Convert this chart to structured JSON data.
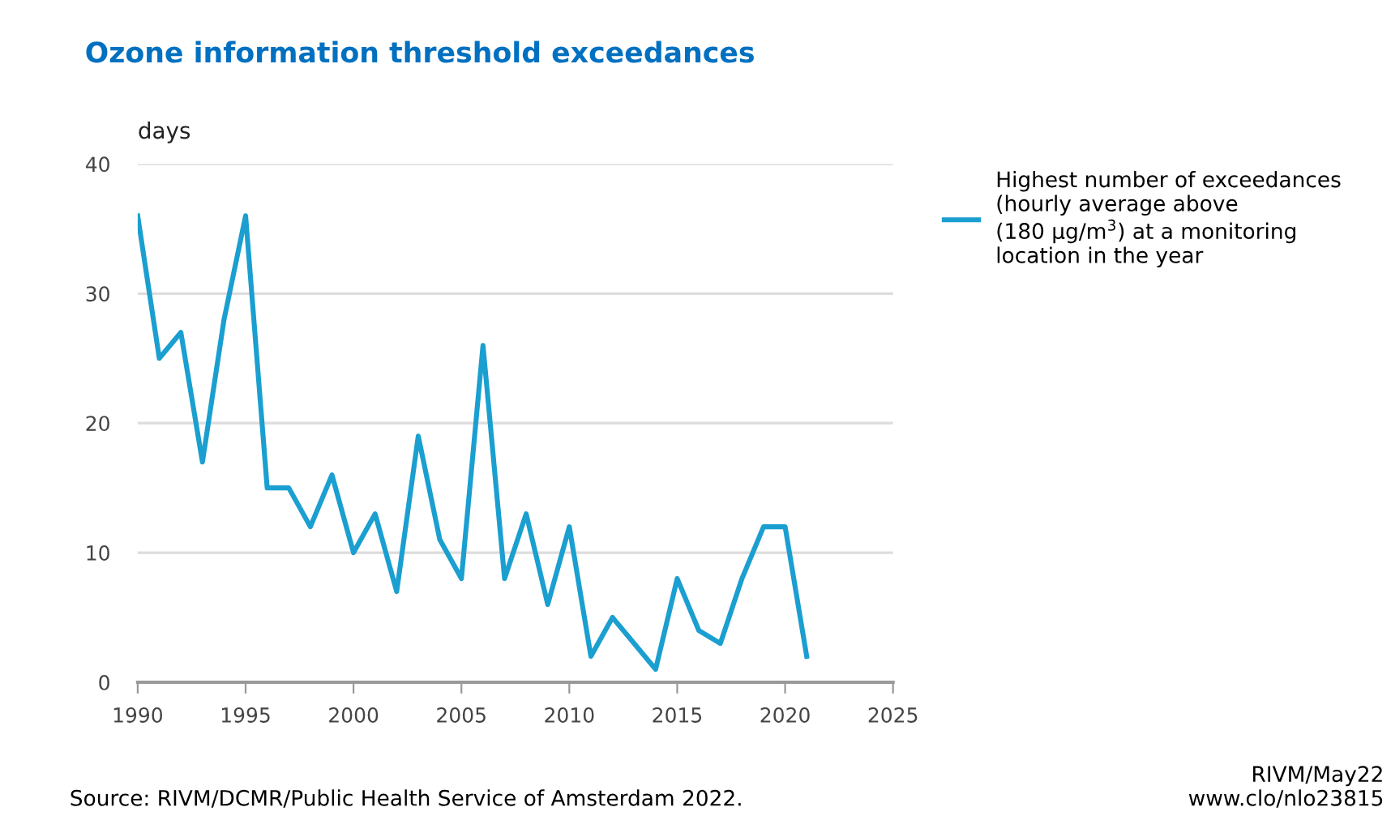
{
  "chart_data": {
    "type": "line",
    "title": "Ozone information threshold exceedances",
    "ylabel": "days",
    "x": [
      1990,
      1991,
      1992,
      1993,
      1994,
      1995,
      1996,
      1997,
      1998,
      1999,
      2000,
      2001,
      2002,
      2003,
      2004,
      2005,
      2006,
      2007,
      2008,
      2009,
      2010,
      2011,
      2012,
      2013,
      2014,
      2015,
      2016,
      2017,
      2018,
      2019,
      2020,
      2021
    ],
    "series": [
      {
        "name": "Highest number of exceedances\n(hourly average above\n(180 µg/m$^{3}$) at a monitoring\nlocation in the year",
        "color": "#1a9fd0",
        "values": [
          36,
          25,
          27,
          17,
          28,
          36,
          15,
          15,
          12,
          16,
          10,
          13,
          7,
          19,
          11,
          8,
          26,
          8,
          13,
          6,
          12,
          2,
          5,
          3,
          1,
          8,
          4,
          3,
          8,
          12,
          12,
          2
        ]
      }
    ],
    "xlim": [
      1990,
      2025
    ],
    "xticks": [
      1990,
      1995,
      2000,
      2005,
      2010,
      2015,
      2020,
      2025
    ],
    "ylim": [
      0,
      40
    ],
    "yticks": [
      0,
      10,
      20,
      30,
      40
    ],
    "grid": "y",
    "legend": "top right",
    "marker": "none",
    "line_style": "solid",
    "annotations": [
      "Source: RIVM/DCMR/Public Health Service of Amsterdam 2022.",
      "RIVM/May22\nwww.clo/nlo23815"
    ]
  }
}
